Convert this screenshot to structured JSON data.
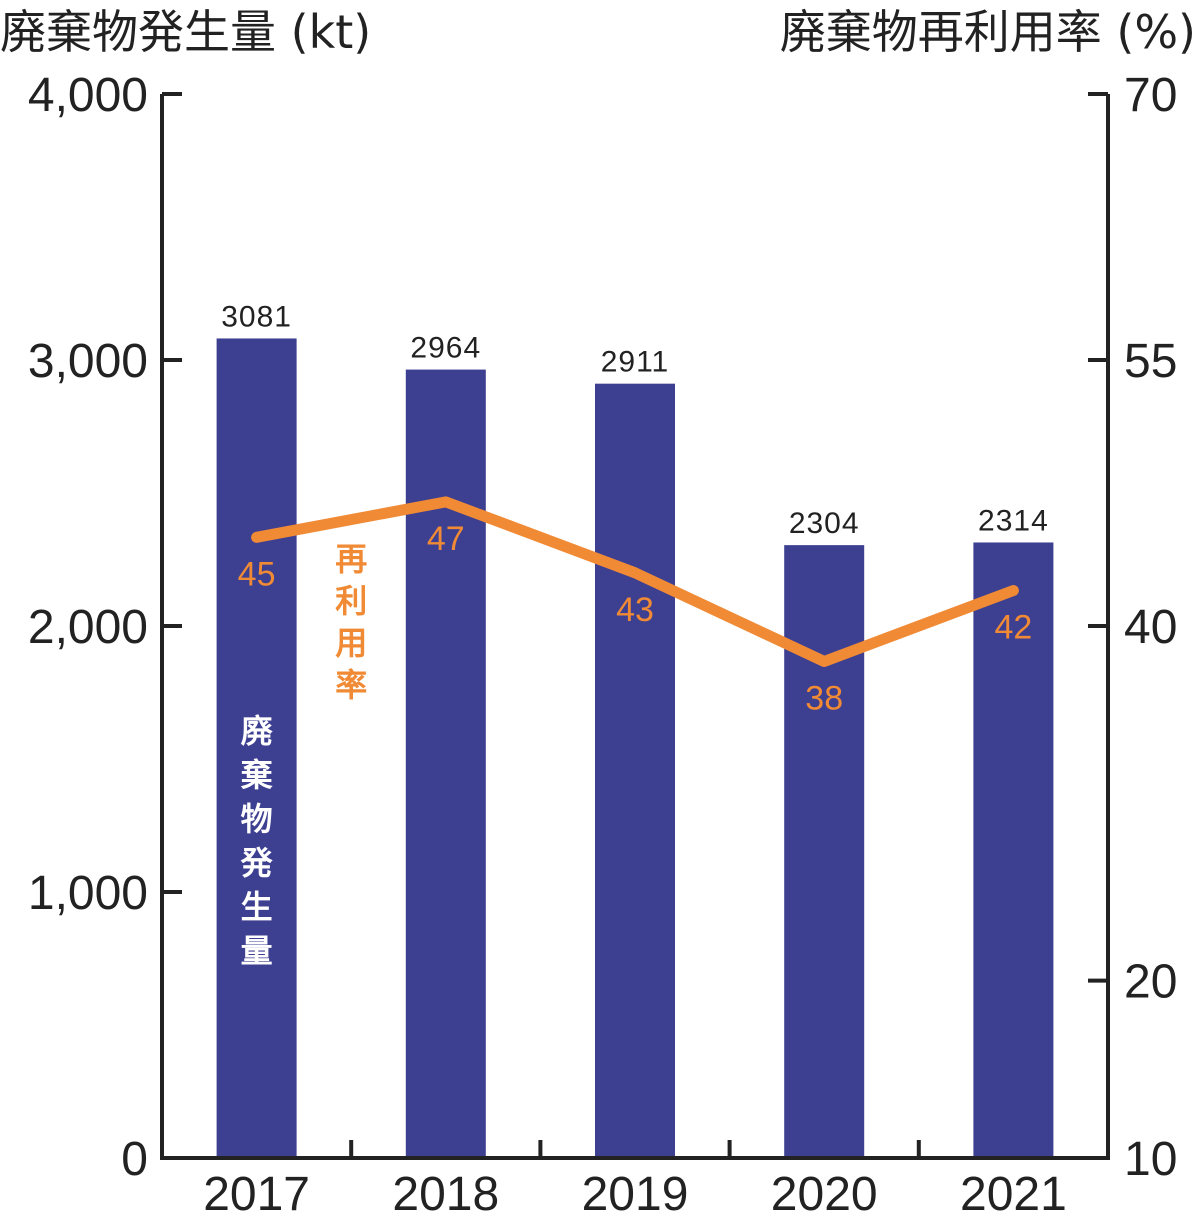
{
  "chart_data": {
    "type": "bar",
    "categories": [
      "2017",
      "2018",
      "2019",
      "2020",
      "2021"
    ],
    "series": [
      {
        "name": "廃棄物発生量",
        "type": "bar",
        "axis": "left",
        "values": [
          3081,
          2964,
          2911,
          2304,
          2314
        ]
      },
      {
        "name": "再利用率",
        "type": "line",
        "axis": "right",
        "values": [
          45,
          47,
          43,
          38,
          42
        ]
      }
    ],
    "y_left": {
      "title": "廃棄物発生量 (kt)",
      "range": [
        0,
        4000
      ],
      "ticks": [
        0,
        1000,
        2000,
        3000,
        4000
      ],
      "tick_labels": [
        "0",
        "1,000",
        "2,000",
        "3,000",
        "4,000"
      ]
    },
    "y_right": {
      "title": "廃棄物再利用率 (%)",
      "range": [
        10,
        70
      ],
      "ticks": [
        10,
        20,
        40,
        55,
        70
      ],
      "tick_labels": [
        "10",
        "20",
        "40",
        "55",
        "70"
      ]
    },
    "grid": false,
    "colors": {
      "bar": "#3d3f91",
      "line": "#f08a35",
      "axis": "#222222",
      "bar_text": "#ffffff"
    }
  }
}
